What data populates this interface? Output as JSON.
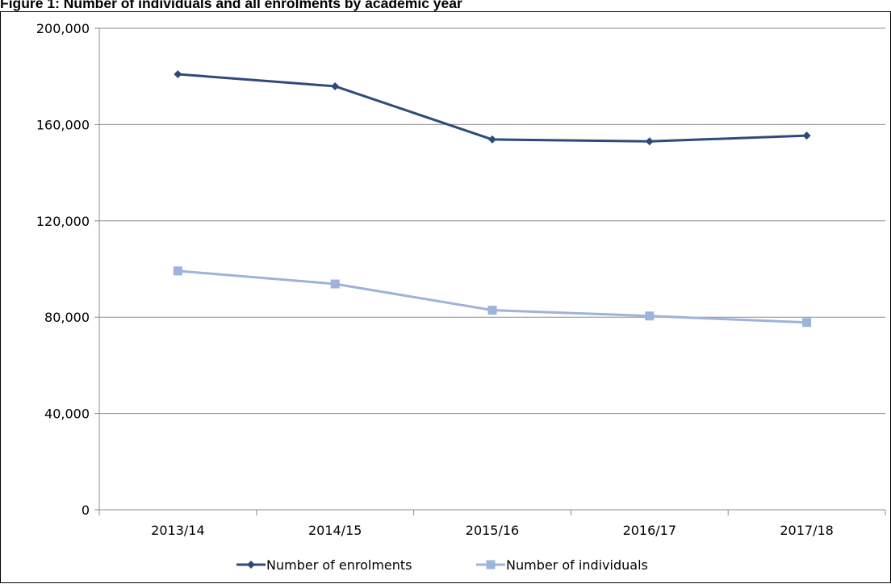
{
  "chart_data": {
    "type": "line",
    "title": "Figure 1: Number of individuals and all enrolments by academic year",
    "categories": [
      "2013/14",
      "2014/15",
      "2015/16",
      "2016/17",
      "2017/18"
    ],
    "ylim": [
      0,
      200000
    ],
    "yticks": [
      0,
      40000,
      80000,
      120000,
      160000,
      200000
    ],
    "ytick_labels": [
      "0",
      "40,000",
      "80,000",
      "120,000",
      "160,000",
      "200,000"
    ],
    "grid": true,
    "legend_position": "bottom",
    "series": [
      {
        "name": "Number of enrolments",
        "values": [
          180900,
          175900,
          153800,
          153000,
          155400
        ],
        "color": "#2e4a7c",
        "marker": "diamond"
      },
      {
        "name": "Number of individuals",
        "values": [
          99200,
          93800,
          82900,
          80500,
          77800
        ],
        "color": "#9db3d9",
        "marker": "square"
      }
    ]
  }
}
